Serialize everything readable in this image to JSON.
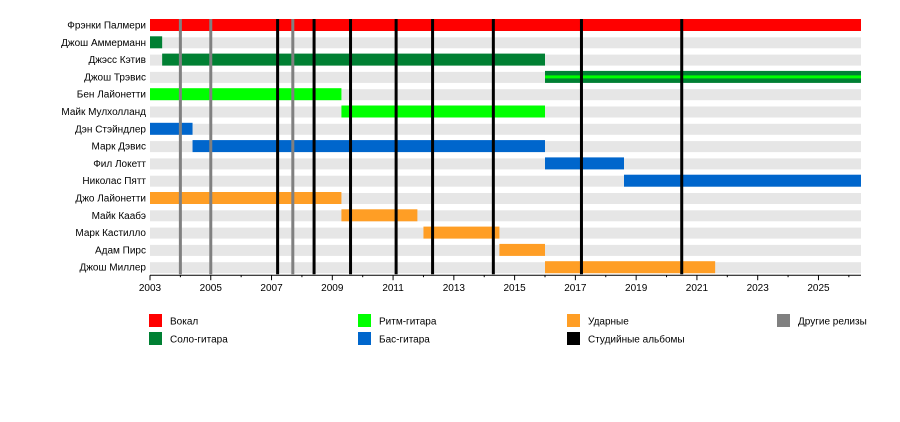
{
  "chart_data": {
    "type": "timeline",
    "x_range": [
      2003,
      2026.4
    ],
    "x_ticks": [
      "2003",
      "2005",
      "2007",
      "2009",
      "2011",
      "2013",
      "2015",
      "2017",
      "2019",
      "2021",
      "2023",
      "2025"
    ],
    "members": [
      "Фрэнки Палмери",
      "Джош Аммерманн",
      "Джэсс Кэтив",
      "Джош Трэвис",
      "Бен Лайонетти",
      "Майк Мулхолланд",
      "Дэн Стэйндлер",
      "Марк Дэвис",
      "Фил Локетт",
      "Николас Пятт",
      "Джо Лайонетти",
      "Майк Кaaбэ",
      "Марк Кастилло",
      "Адам Пирс",
      "Джош Миллер"
    ],
    "bars": [
      {
        "row": 0,
        "role": "vocal",
        "start": 2003.0,
        "end": 2026.4
      },
      {
        "row": 1,
        "role": "lead",
        "start": 2003.0,
        "end": 2003.4
      },
      {
        "row": 2,
        "role": "lead",
        "start": 2003.4,
        "end": 2016.0
      },
      {
        "row": 3,
        "role": "lead",
        "start": 2016.0,
        "end": 2026.4
      },
      {
        "row": 3,
        "role": "rhythm",
        "start": 2016.0,
        "end": 2026.4,
        "thin": true
      },
      {
        "row": 4,
        "role": "rhythm",
        "start": 2003.0,
        "end": 2009.3
      },
      {
        "row": 5,
        "role": "rhythm",
        "start": 2009.3,
        "end": 2016.0
      },
      {
        "row": 6,
        "role": "bass",
        "start": 2003.0,
        "end": 2004.4
      },
      {
        "row": 7,
        "role": "bass",
        "start": 2004.4,
        "end": 2016.0
      },
      {
        "row": 8,
        "role": "bass",
        "start": 2016.0,
        "end": 2018.6
      },
      {
        "row": 9,
        "role": "bass",
        "start": 2018.6,
        "end": 2026.4
      },
      {
        "row": 10,
        "role": "drums",
        "start": 2003.0,
        "end": 2009.3
      },
      {
        "row": 11,
        "role": "drums",
        "start": 2009.3,
        "end": 2011.8
      },
      {
        "row": 12,
        "role": "drums",
        "start": 2012.0,
        "end": 2014.5
      },
      {
        "row": 13,
        "role": "drums",
        "start": 2014.5,
        "end": 2016.0
      },
      {
        "row": 14,
        "role": "drums",
        "start": 2016.0,
        "end": 2021.6
      }
    ],
    "studio_albums": [
      2007.2,
      2008.4,
      2009.6,
      2011.1,
      2012.3,
      2014.3,
      2017.2,
      2020.5
    ],
    "other_releases": [
      2004.0,
      2005.0,
      2007.7
    ],
    "grid": true,
    "legend_position": "bottom"
  },
  "colors": {
    "vocal": "#ff0000",
    "lead": "#008033",
    "rhythm": "#00ff00",
    "bass": "#0066cc",
    "drums": "#ff9e25",
    "studio": "#000000",
    "other": "#808080",
    "row_bg": "#e6e6e6"
  },
  "legend": [
    {
      "key": "vocal",
      "label": "Вокал"
    },
    {
      "key": "lead",
      "label": "Соло-гитара"
    },
    {
      "key": "rhythm",
      "label": "Ритм-гитара"
    },
    {
      "key": "bass",
      "label": "Бас-гитара"
    },
    {
      "key": "drums",
      "label": "Ударные"
    },
    {
      "key": "studio",
      "label": "Студийные альбомы"
    },
    {
      "key": "other",
      "label": "Другие релизы"
    }
  ]
}
